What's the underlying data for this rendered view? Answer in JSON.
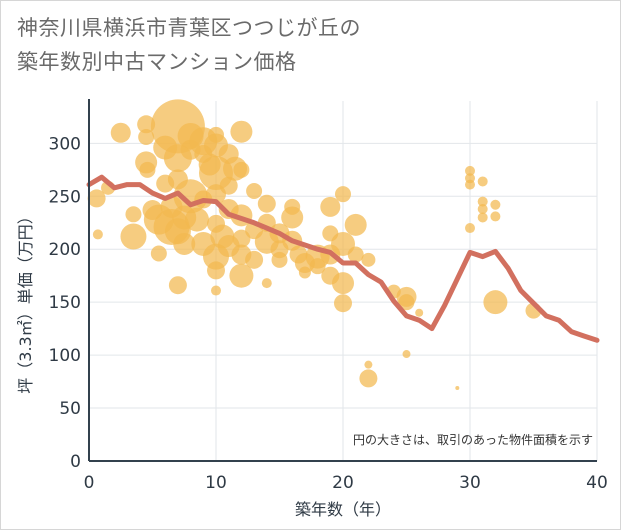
{
  "title_line1": "神奈川県横浜市青葉区つつじが丘の",
  "title_line2": "築年数別中古マンション価格",
  "note": "円の大きさは、取引のあった物件面積を示す",
  "colors": {
    "bubble": "#f3b94f",
    "line": "#d2705f",
    "grid": "#e2e6ea",
    "axis": "#33414e"
  },
  "chart_data": {
    "type": "scatter",
    "title": "神奈川県横浜市青葉区つつじが丘の築年数別中古マンション価格",
    "xlabel": "築年数（年）",
    "ylabel": "坪（3.3㎡）単価（万円）",
    "xlim": [
      0,
      40
    ],
    "ylim": [
      0,
      340
    ],
    "xticks": [
      0,
      10,
      20,
      30,
      40
    ],
    "yticks": [
      0,
      50,
      100,
      150,
      200,
      250,
      300
    ],
    "grid": true,
    "annotation": "円の大きさは、取引のあった物件面積を示す",
    "bubbles": [
      {
        "x": 0.6,
        "y": 248,
        "s": 9
      },
      {
        "x": 0.7,
        "y": 214,
        "s": 5
      },
      {
        "x": 1.5,
        "y": 258,
        "s": 7
      },
      {
        "x": 2.5,
        "y": 310,
        "s": 10
      },
      {
        "x": 3.5,
        "y": 212,
        "s": 13
      },
      {
        "x": 3.5,
        "y": 233,
        "s": 8
      },
      {
        "x": 4.5,
        "y": 318,
        "s": 9
      },
      {
        "x": 4.5,
        "y": 306,
        "s": 8
      },
      {
        "x": 4.5,
        "y": 282,
        "s": 11
      },
      {
        "x": 4.6,
        "y": 275,
        "s": 8
      },
      {
        "x": 5,
        "y": 237,
        "s": 10
      },
      {
        "x": 5.5,
        "y": 228,
        "s": 15
      },
      {
        "x": 5.5,
        "y": 196,
        "s": 8
      },
      {
        "x": 6,
        "y": 296,
        "s": 12
      },
      {
        "x": 6,
        "y": 262,
        "s": 9
      },
      {
        "x": 6.5,
        "y": 240,
        "s": 11
      },
      {
        "x": 6.5,
        "y": 221,
        "s": 18
      },
      {
        "x": 7,
        "y": 316,
        "s": 27
      },
      {
        "x": 7,
        "y": 286,
        "s": 14
      },
      {
        "x": 7,
        "y": 266,
        "s": 10
      },
      {
        "x": 7,
        "y": 217,
        "s": 13
      },
      {
        "x": 7,
        "y": 166,
        "s": 9
      },
      {
        "x": 7.5,
        "y": 230,
        "s": 12
      },
      {
        "x": 7.5,
        "y": 205,
        "s": 11
      },
      {
        "x": 8,
        "y": 307,
        "s": 13
      },
      {
        "x": 8,
        "y": 294,
        "s": 10
      },
      {
        "x": 8,
        "y": 250,
        "s": 17
      },
      {
        "x": 8.5,
        "y": 228,
        "s": 12
      },
      {
        "x": 9,
        "y": 302,
        "s": 14
      },
      {
        "x": 9,
        "y": 290,
        "s": 9
      },
      {
        "x": 9,
        "y": 247,
        "s": 9
      },
      {
        "x": 9,
        "y": 205,
        "s": 12
      },
      {
        "x": 9.5,
        "y": 280,
        "s": 11
      },
      {
        "x": 10,
        "y": 308,
        "s": 8
      },
      {
        "x": 10,
        "y": 298,
        "s": 12
      },
      {
        "x": 10,
        "y": 272,
        "s": 17
      },
      {
        "x": 10,
        "y": 252,
        "s": 10
      },
      {
        "x": 10,
        "y": 224,
        "s": 9
      },
      {
        "x": 10,
        "y": 193,
        "s": 13
      },
      {
        "x": 10,
        "y": 180,
        "s": 9
      },
      {
        "x": 10,
        "y": 161,
        "s": 5
      },
      {
        "x": 10.5,
        "y": 212,
        "s": 12
      },
      {
        "x": 11,
        "y": 290,
        "s": 10
      },
      {
        "x": 11,
        "y": 260,
        "s": 9
      },
      {
        "x": 11,
        "y": 238,
        "s": 10
      },
      {
        "x": 11,
        "y": 203,
        "s": 11
      },
      {
        "x": 11.5,
        "y": 276,
        "s": 12
      },
      {
        "x": 12,
        "y": 311,
        "s": 11
      },
      {
        "x": 12,
        "y": 275,
        "s": 8
      },
      {
        "x": 12,
        "y": 232,
        "s": 11
      },
      {
        "x": 12,
        "y": 210,
        "s": 9
      },
      {
        "x": 12,
        "y": 195,
        "s": 10
      },
      {
        "x": 12,
        "y": 175,
        "s": 12
      },
      {
        "x": 13,
        "y": 255,
        "s": 8
      },
      {
        "x": 13,
        "y": 218,
        "s": 9
      },
      {
        "x": 13,
        "y": 190,
        "s": 9
      },
      {
        "x": 14,
        "y": 243,
        "s": 9
      },
      {
        "x": 14,
        "y": 225,
        "s": 9
      },
      {
        "x": 14,
        "y": 207,
        "s": 12
      },
      {
        "x": 14,
        "y": 168,
        "s": 5
      },
      {
        "x": 15,
        "y": 215,
        "s": 10
      },
      {
        "x": 15,
        "y": 200,
        "s": 9
      },
      {
        "x": 15,
        "y": 190,
        "s": 8
      },
      {
        "x": 16,
        "y": 240,
        "s": 8
      },
      {
        "x": 16,
        "y": 230,
        "s": 11
      },
      {
        "x": 16,
        "y": 208,
        "s": 10
      },
      {
        "x": 16.5,
        "y": 195,
        "s": 9
      },
      {
        "x": 17,
        "y": 187,
        "s": 10
      },
      {
        "x": 17,
        "y": 178,
        "s": 6
      },
      {
        "x": 18,
        "y": 193,
        "s": 12
      },
      {
        "x": 18,
        "y": 184,
        "s": 8
      },
      {
        "x": 19,
        "y": 240,
        "s": 10
      },
      {
        "x": 19,
        "y": 215,
        "s": 8
      },
      {
        "x": 19,
        "y": 195,
        "s": 10
      },
      {
        "x": 19,
        "y": 175,
        "s": 9
      },
      {
        "x": 20,
        "y": 252,
        "s": 8
      },
      {
        "x": 20,
        "y": 205,
        "s": 12
      },
      {
        "x": 20,
        "y": 168,
        "s": 11
      },
      {
        "x": 20,
        "y": 149,
        "s": 9
      },
      {
        "x": 21,
        "y": 223,
        "s": 11
      },
      {
        "x": 21,
        "y": 195,
        "s": 8
      },
      {
        "x": 22,
        "y": 190,
        "s": 7
      },
      {
        "x": 22,
        "y": 91,
        "s": 4
      },
      {
        "x": 22,
        "y": 78,
        "s": 9
      },
      {
        "x": 24,
        "y": 160,
        "s": 7
      },
      {
        "x": 25,
        "y": 155,
        "s": 10
      },
      {
        "x": 25,
        "y": 150,
        "s": 8
      },
      {
        "x": 25,
        "y": 101,
        "s": 4
      },
      {
        "x": 26,
        "y": 140,
        "s": 4
      },
      {
        "x": 29,
        "y": 69,
        "s": 2
      },
      {
        "x": 30,
        "y": 274,
        "s": 5
      },
      {
        "x": 30,
        "y": 267,
        "s": 5
      },
      {
        "x": 30,
        "y": 261,
        "s": 5
      },
      {
        "x": 30,
        "y": 220,
        "s": 5
      },
      {
        "x": 31,
        "y": 264,
        "s": 5
      },
      {
        "x": 31,
        "y": 245,
        "s": 5
      },
      {
        "x": 31,
        "y": 238,
        "s": 5
      },
      {
        "x": 31,
        "y": 230,
        "s": 5
      },
      {
        "x": 32,
        "y": 242,
        "s": 5
      },
      {
        "x": 32,
        "y": 231,
        "s": 5
      },
      {
        "x": 32,
        "y": 150,
        "s": 12
      },
      {
        "x": 35,
        "y": 142,
        "s": 8
      }
    ],
    "series": [
      {
        "values": [
          {
            "x": 0,
            "y": 261
          },
          {
            "x": 1,
            "y": 268
          },
          {
            "x": 2,
            "y": 258
          },
          {
            "x": 3,
            "y": 261
          },
          {
            "x": 4,
            "y": 261
          },
          {
            "x": 5,
            "y": 253
          },
          {
            "x": 6,
            "y": 248
          },
          {
            "x": 7,
            "y": 253
          },
          {
            "x": 8,
            "y": 242
          },
          {
            "x": 9,
            "y": 246
          },
          {
            "x": 10,
            "y": 245
          },
          {
            "x": 11,
            "y": 233
          },
          {
            "x": 12,
            "y": 229
          },
          {
            "x": 13,
            "y": 225
          },
          {
            "x": 14,
            "y": 220
          },
          {
            "x": 15,
            "y": 215
          },
          {
            "x": 16,
            "y": 208
          },
          {
            "x": 17,
            "y": 204
          },
          {
            "x": 18,
            "y": 200
          },
          {
            "x": 19,
            "y": 197
          },
          {
            "x": 20,
            "y": 187
          },
          {
            "x": 21,
            "y": 187
          },
          {
            "x": 22,
            "y": 176
          },
          {
            "x": 23,
            "y": 169
          },
          {
            "x": 24,
            "y": 151
          },
          {
            "x": 25,
            "y": 137
          },
          {
            "x": 26,
            "y": 133
          },
          {
            "x": 27,
            "y": 125
          },
          {
            "x": 28,
            "y": 147
          },
          {
            "x": 29,
            "y": 172
          },
          {
            "x": 30,
            "y": 197
          },
          {
            "x": 31,
            "y": 193
          },
          {
            "x": 32,
            "y": 198
          },
          {
            "x": 33,
            "y": 182
          },
          {
            "x": 34,
            "y": 161
          },
          {
            "x": 35,
            "y": 149
          },
          {
            "x": 36,
            "y": 137
          },
          {
            "x": 37,
            "y": 133
          },
          {
            "x": 38,
            "y": 122
          },
          {
            "x": 39,
            "y": 118
          },
          {
            "x": 40,
            "y": 114
          }
        ]
      }
    ]
  }
}
